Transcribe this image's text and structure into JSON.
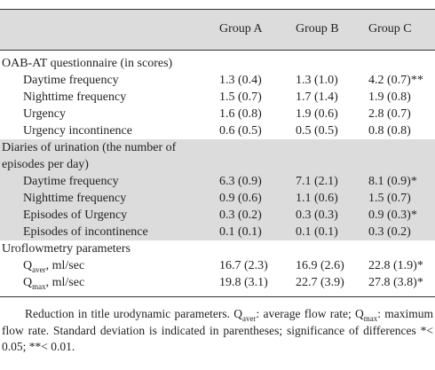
{
  "columns": [
    "Group A",
    "Group B",
    "Group C"
  ],
  "sections": [
    {
      "title": "OAB-AT  questionnaire (in scores)",
      "rows": [
        {
          "label": "Daytime frequency",
          "values": [
            "1.3 (0.4)",
            "1.3 (1.0)",
            "4.2 (0.7)**"
          ]
        },
        {
          "label": "Nighttime frequency",
          "values": [
            "1.5 (0.7)",
            "1.7 (1.4)",
            "1.9 (0.8)"
          ]
        },
        {
          "label": "Urgency",
          "values": [
            "1.6 (0.8)",
            "1.9 (0.6)",
            "2.8 (0.7)"
          ]
        },
        {
          "label": "Urgency incontinence",
          "values": [
            "0.6 (0.5)",
            "0.5 (0.5)",
            "0.8 (0.8)"
          ]
        }
      ]
    },
    {
      "title_line1": "Diaries of urination (the number of",
      "title_line2": "episodes per day)",
      "rows": [
        {
          "label": "Daytime frequency",
          "values": [
            "6.3 (0.9)",
            "7.1 (2.1)",
            "8.1  (0.9)*"
          ]
        },
        {
          "label": "Nighttime frequency",
          "values": [
            "0.9 (0.6)",
            "1.1 (0.6)",
            "1.5 (0.7)"
          ]
        },
        {
          "label": "Episodes of Urgency",
          "values": [
            "0.3 (0.2)",
            "0.3 (0.3)",
            "0.9 (0.3)*"
          ]
        },
        {
          "label": "Episodes of incontinence",
          "values": [
            "0.1 (0.1)",
            "0.1 (0.1)",
            "0.3 (0.2)"
          ]
        }
      ]
    },
    {
      "title": "Uroflowmetry parameters",
      "rows": [
        {
          "label_q": "Q",
          "label_sub": "aver",
          "label_rest": ", ml/sec",
          "values": [
            "16.7 (2.3)",
            "16.9 (2.6)",
            "22.8 (1.9)*"
          ]
        },
        {
          "label_q": "Q",
          "label_sub": "max",
          "label_rest": ", ml/sec",
          "values": [
            "19.8 (3.1)",
            "22.7 (3.9)",
            "27.8 (3.8)*"
          ]
        }
      ]
    }
  ],
  "note": {
    "p1": "Reduction in title urodynamic parameters. Q",
    "sub1": "aver",
    "p2": ": average flow rate; Q",
    "sub2": "max",
    "p3": ": maximum flow rate. Standard deviation is indicated in parentheses; significance of differences *< 0.05; **< 0.01."
  }
}
